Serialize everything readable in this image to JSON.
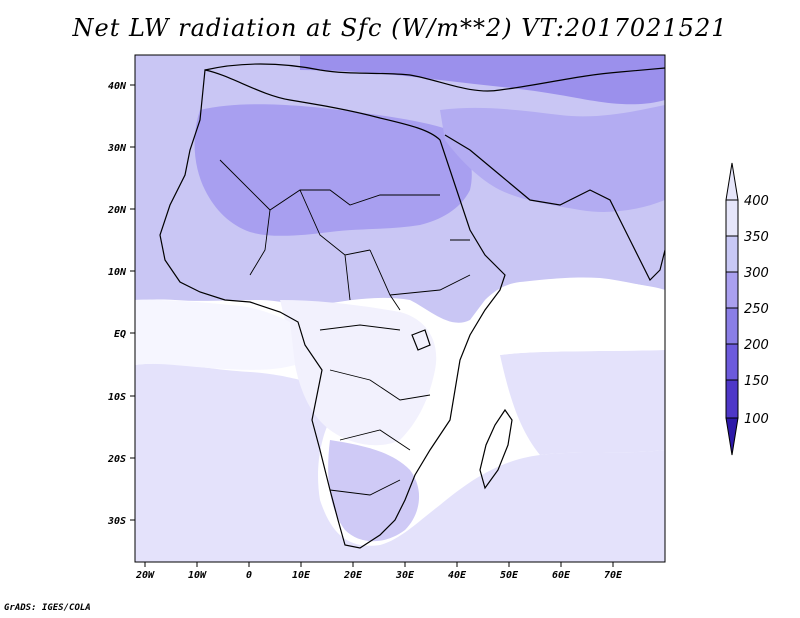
{
  "title": "Net LW radiation at Sfc (W/m**2) VT:2017021521",
  "credit": "GrADS: IGES/COLA",
  "map": {
    "lon_ticks": [
      "20W",
      "10W",
      "0",
      "10E",
      "20E",
      "30E",
      "40E",
      "50E",
      "60E",
      "70E"
    ],
    "lat_ticks": [
      "40N",
      "30N",
      "20N",
      "10N",
      "EQ",
      "10S",
      "20S",
      "30S"
    ]
  },
  "colorbar": {
    "levels": [
      "400",
      "350",
      "300",
      "250",
      "200",
      "150",
      "100"
    ],
    "colors": [
      "#e6e6fa",
      "#c8c8f5",
      "#aaa0f0",
      "#8a7ee6",
      "#6c5adc",
      "#4e37c8",
      "#2d19a8",
      "#1e0a8c"
    ]
  }
}
